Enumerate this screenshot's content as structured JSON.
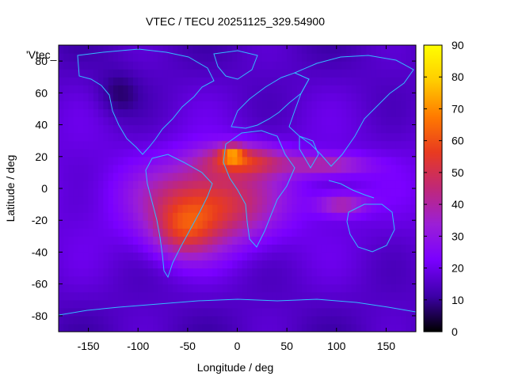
{
  "chart_data": {
    "type": "heatmap",
    "title": "VTEC / TECU 20251125_329.54900",
    "xlabel": "Longitude / deg",
    "ylabel": "Latitude / deg",
    "xlim": [
      -180,
      180
    ],
    "ylim": [
      -90,
      90
    ],
    "x_ticks": [
      -150,
      -100,
      -50,
      0,
      50,
      100,
      150
    ],
    "y_ticks": [
      -80,
      -60,
      -40,
      -20,
      0,
      20,
      40,
      60,
      80
    ],
    "colorbar": {
      "range": [
        0,
        90
      ],
      "ticks": [
        0,
        10,
        20,
        30,
        40,
        50,
        60,
        70,
        80,
        90
      ],
      "palette": [
        "#000000",
        "#3d00a8",
        "#7a00ff",
        "#9b1fd6",
        "#c02878",
        "#e83a20",
        "#ff7a00",
        "#ffcc00",
        "#ffff00"
      ]
    },
    "legend_label": "'Vtec_",
    "background_level": 20,
    "features": [
      {
        "name": "equatorial-anomaly-core",
        "lon": -30,
        "lat": -10,
        "value": 58
      },
      {
        "name": "atlantic-africa-crest",
        "lon": 0,
        "lat": 20,
        "value": 68
      },
      {
        "name": "peak",
        "lon": -5,
        "lat": 22,
        "value": 82
      },
      {
        "name": "south-america-crest",
        "lon": -60,
        "lat": -25,
        "value": 55
      },
      {
        "name": "indian-ocean-tail",
        "lon": 90,
        "lat": 15,
        "value": 45
      },
      {
        "name": "southeast-asia-tail",
        "lon": 100,
        "lat": -10,
        "value": 48
      }
    ],
    "overlay": "coastlines"
  }
}
